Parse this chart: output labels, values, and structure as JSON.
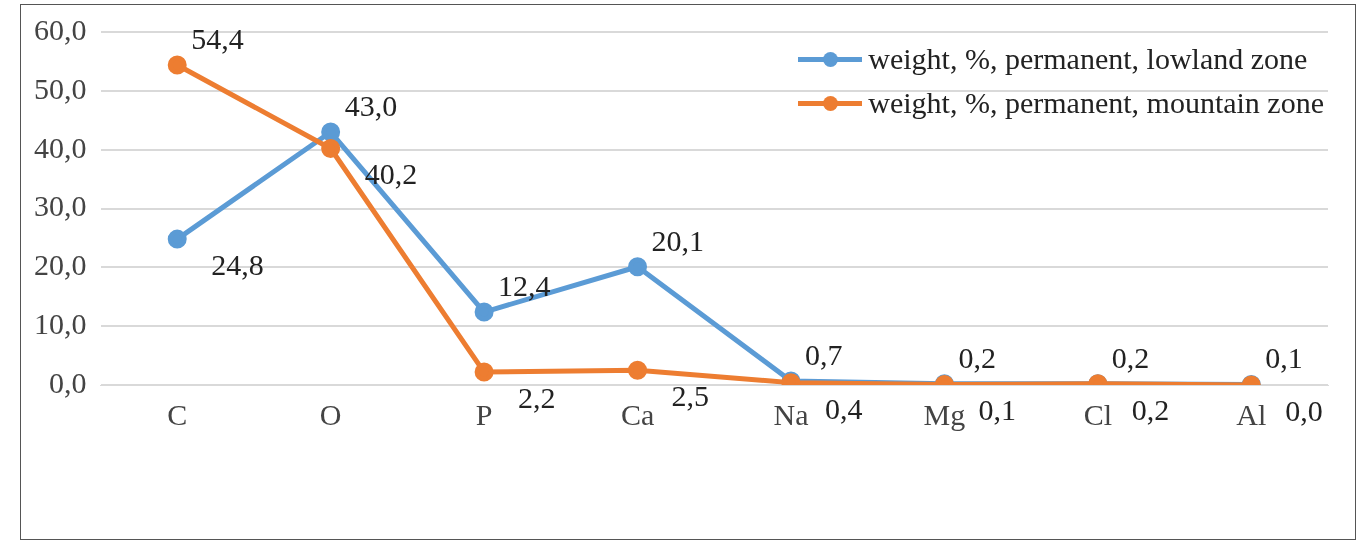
{
  "chart_data": {
    "type": "line",
    "categories": [
      "C",
      "O",
      "P",
      "Ca",
      "Na",
      "Mg",
      "Cl",
      "Al"
    ],
    "series": [
      {
        "name": "weight, %, permanent, lowland zone",
        "color": "#5b9bd5",
        "values": [
          24.8,
          43.0,
          12.4,
          20.1,
          0.7,
          0.2,
          0.2,
          0.1
        ],
        "value_labels": [
          "24,8",
          "43,0",
          "12,4",
          "20,1",
          "0,7",
          "0,2",
          "0,2",
          "0,1"
        ]
      },
      {
        "name": "weight, %, permanent, mountain zone",
        "color": "#ed7d31",
        "values": [
          54.4,
          40.2,
          2.2,
          2.5,
          0.4,
          0.1,
          0.2,
          0.0
        ],
        "value_labels": [
          "54,4",
          "40,2",
          "2,2",
          "2,5",
          "0,4",
          "0,1",
          "0,2",
          "0,0"
        ]
      }
    ],
    "ylim": [
      0,
      60
    ],
    "yticks": [
      {
        "value": 0,
        "label": "0,0"
      },
      {
        "value": 10,
        "label": "10,0"
      },
      {
        "value": 20,
        "label": "20,0"
      },
      {
        "value": 30,
        "label": "30,0"
      },
      {
        "value": 40,
        "label": "40,0"
      },
      {
        "value": 50,
        "label": "50,0"
      },
      {
        "value": 60,
        "label": "60,0"
      }
    ],
    "grid": "y",
    "legend": "top right",
    "marker": "circle",
    "line_style": "solid"
  }
}
